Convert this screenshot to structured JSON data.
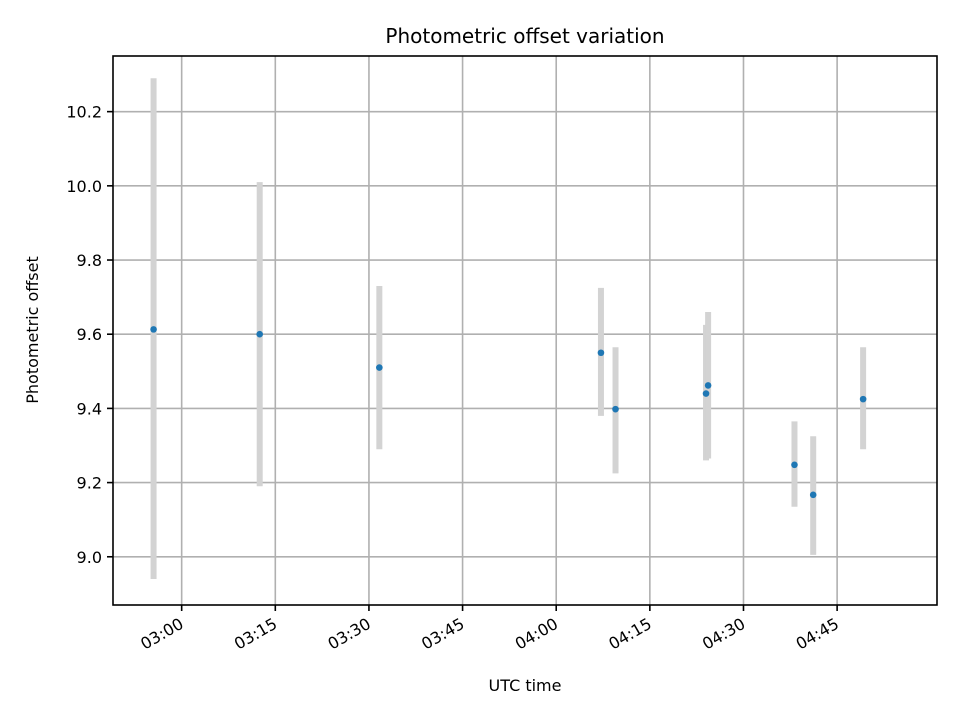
{
  "chart_data": {
    "type": "scatter",
    "title": "Photometric offset variation",
    "xlabel": "UTC time",
    "ylabel": "Photometric offset",
    "xlim": [
      "02:49",
      "05:01"
    ],
    "ylim": [
      8.87,
      10.35
    ],
    "x_ticks": [
      "03:00",
      "03:15",
      "03:30",
      "03:45",
      "04:00",
      "04:15",
      "04:30",
      "04:45"
    ],
    "y_ticks": [
      9.0,
      9.2,
      9.4,
      9.6,
      9.8,
      10.0,
      10.2
    ],
    "grid": true,
    "point_color": "#1f77b4",
    "errorbar_color": "#d3d3d3",
    "series": [
      {
        "points": [
          {
            "x": "02:55:30",
            "y": 9.613,
            "low": 8.94,
            "high": 10.29
          },
          {
            "x": "03:12:30",
            "y": 9.6,
            "low": 9.19,
            "high": 10.01
          },
          {
            "x": "03:31:40",
            "y": 9.51,
            "low": 9.29,
            "high": 9.73
          },
          {
            "x": "04:07:10",
            "y": 9.55,
            "low": 9.38,
            "high": 9.725
          },
          {
            "x": "04:09:30",
            "y": 9.398,
            "low": 9.225,
            "high": 9.565
          },
          {
            "x": "04:24:00",
            "y": 9.44,
            "low": 9.26,
            "high": 9.625
          },
          {
            "x": "04:24:20",
            "y": 9.462,
            "low": 9.265,
            "high": 9.66
          },
          {
            "x": "04:38:10",
            "y": 9.248,
            "low": 9.135,
            "high": 9.365
          },
          {
            "x": "04:41:10",
            "y": 9.167,
            "low": 9.005,
            "high": 9.325
          },
          {
            "x": "04:49:10",
            "y": 9.425,
            "low": 9.29,
            "high": 9.565
          }
        ]
      }
    ]
  }
}
